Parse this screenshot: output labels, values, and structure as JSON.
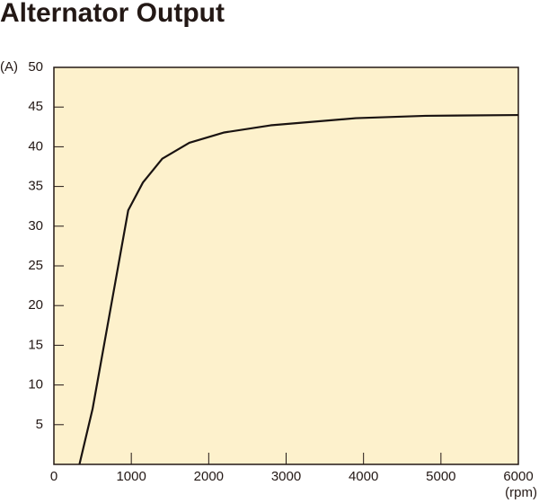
{
  "chart_data": {
    "type": "line",
    "title": "Alternator Output",
    "xlabel": "(rpm)",
    "ylabel": "(A)",
    "x": [
      330,
      500,
      960,
      1150,
      1400,
      1750,
      2200,
      2800,
      3900,
      4800,
      6000
    ],
    "values": [
      0,
      7,
      32,
      35.5,
      38.5,
      40.5,
      41.8,
      42.7,
      43.6,
      43.9,
      44
    ],
    "color": "#1a1311",
    "background": "#fdf1cc",
    "xlim": [
      0,
      6000
    ],
    "xticks": [
      0,
      1000,
      2000,
      3000,
      4000,
      5000,
      6000
    ],
    "ylim": [
      0,
      50
    ],
    "yticks": [
      5,
      10,
      15,
      20,
      25,
      30,
      35,
      40,
      45,
      50
    ]
  }
}
